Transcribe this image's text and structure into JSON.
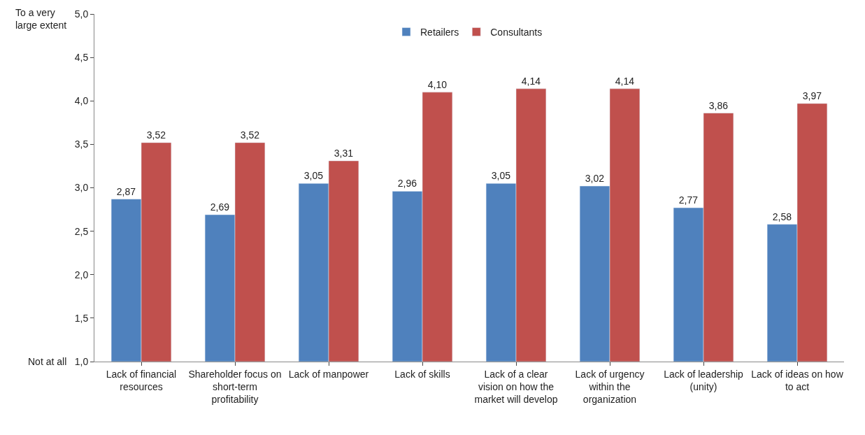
{
  "chart_data": {
    "type": "bar",
    "categories": [
      "Lack of financial resources",
      "Shareholder focus on short-term profitability",
      "Lack of manpower",
      "Lack of skills",
      "Lack of a clear vision on how the market will develop",
      "Lack of urgency within the organization",
      "Lack of leadership (unity)",
      "Lack of ideas on how to act"
    ],
    "series": [
      {
        "name": "Retailers",
        "color": "#4f81bd",
        "values": [
          2.87,
          2.69,
          3.05,
          2.96,
          3.05,
          3.02,
          2.77,
          2.58
        ],
        "value_labels": [
          "2,87",
          "2,69",
          "3,05",
          "2,96",
          "3,05",
          "3,02",
          "2,77",
          "2,58"
        ]
      },
      {
        "name": "Consultants",
        "color": "#c0504d",
        "values": [
          3.52,
          3.52,
          3.31,
          4.1,
          4.14,
          4.14,
          3.86,
          3.97
        ],
        "value_labels": [
          "3,52",
          "3,52",
          "3,31",
          "4,10",
          "4,14",
          "4,14",
          "3,86",
          "3,97"
        ]
      }
    ],
    "ylim": [
      1,
      5
    ],
    "yticks": [
      {
        "value": 1,
        "label": "1,0"
      },
      {
        "value": 1.5,
        "label": "1,5"
      },
      {
        "value": 2,
        "label": "2,0"
      },
      {
        "value": 2.5,
        "label": "2,5"
      },
      {
        "value": 3,
        "label": "3,0"
      },
      {
        "value": 3.5,
        "label": "3,5"
      },
      {
        "value": 4,
        "label": "4,0"
      },
      {
        "value": 4.5,
        "label": "4,5"
      },
      {
        "value": 5,
        "label": "5,0"
      }
    ],
    "annotations": [
      "To a very\nlarge extent",
      "Not at all"
    ],
    "legend": "top"
  }
}
